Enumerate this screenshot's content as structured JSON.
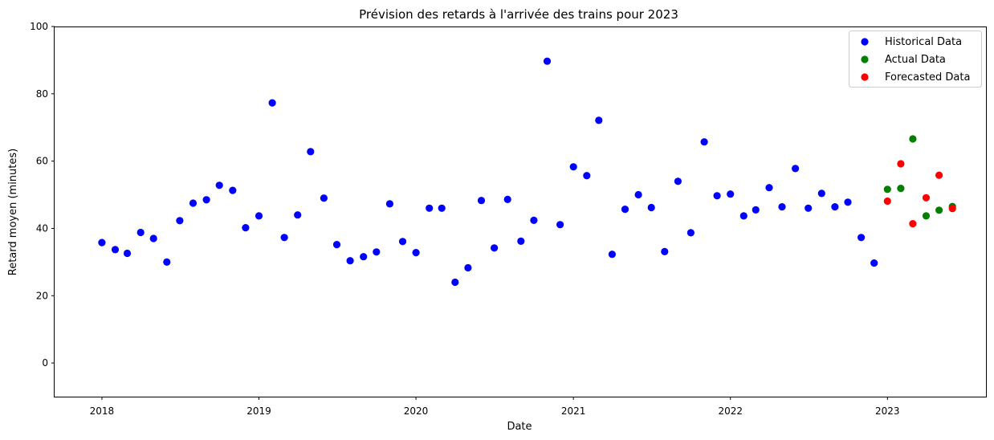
{
  "chart_data": {
    "type": "scatter",
    "title": "Prévision des retards à l'arrivée des trains pour 2023",
    "xlabel": "Date",
    "ylabel": "Retard moyen (minutes)",
    "xlim": [
      "2017-09-13",
      "2023-08-18"
    ],
    "ylim": [
      -10,
      100
    ],
    "x_ticks": [
      {
        "date": "2018-01-01",
        "label": "2018"
      },
      {
        "date": "2019-01-01",
        "label": "2019"
      },
      {
        "date": "2020-01-01",
        "label": "2020"
      },
      {
        "date": "2021-01-01",
        "label": "2021"
      },
      {
        "date": "2022-01-01",
        "label": "2022"
      },
      {
        "date": "2023-01-01",
        "label": "2023"
      }
    ],
    "y_ticks": [
      0,
      20,
      40,
      60,
      80,
      100
    ],
    "grid": false,
    "legend_position": "top-right",
    "series": [
      {
        "name": "Historical Data",
        "color": "#0000ff",
        "points": [
          [
            "2018-01-01",
            35.8
          ],
          [
            "2018-02-01",
            33.7
          ],
          [
            "2018-03-01",
            32.6
          ],
          [
            "2018-04-01",
            38.8
          ],
          [
            "2018-05-01",
            37.0
          ],
          [
            "2018-06-01",
            30.0
          ],
          [
            "2018-07-01",
            42.3
          ],
          [
            "2018-08-01",
            47.5
          ],
          [
            "2018-09-01",
            48.5
          ],
          [
            "2018-10-01",
            52.8
          ],
          [
            "2018-11-01",
            51.3
          ],
          [
            "2018-12-01",
            40.2
          ],
          [
            "2019-01-01",
            43.7
          ],
          [
            "2019-02-01",
            77.3
          ],
          [
            "2019-03-01",
            37.3
          ],
          [
            "2019-04-01",
            44.0
          ],
          [
            "2019-05-01",
            62.8
          ],
          [
            "2019-06-01",
            49.0
          ],
          [
            "2019-07-01",
            35.2
          ],
          [
            "2019-08-01",
            30.4
          ],
          [
            "2019-09-01",
            31.6
          ],
          [
            "2019-10-01",
            33.0
          ],
          [
            "2019-11-01",
            47.3
          ],
          [
            "2019-12-01",
            36.1
          ],
          [
            "2020-01-01",
            32.8
          ],
          [
            "2020-02-01",
            46.0
          ],
          [
            "2020-03-01",
            46.0
          ],
          [
            "2020-04-01",
            24.0
          ],
          [
            "2020-05-01",
            28.3
          ],
          [
            "2020-06-01",
            48.3
          ],
          [
            "2020-07-01",
            34.2
          ],
          [
            "2020-08-01",
            48.6
          ],
          [
            "2020-09-01",
            36.2
          ],
          [
            "2020-10-01",
            42.4
          ],
          [
            "2020-11-01",
            89.7
          ],
          [
            "2020-12-01",
            41.1
          ],
          [
            "2021-01-01",
            58.3
          ],
          [
            "2021-02-01",
            55.7
          ],
          [
            "2021-03-01",
            72.1
          ],
          [
            "2021-04-01",
            32.3
          ],
          [
            "2021-05-01",
            45.7
          ],
          [
            "2021-06-01",
            50.0
          ],
          [
            "2021-07-01",
            46.2
          ],
          [
            "2021-08-01",
            33.1
          ],
          [
            "2021-09-01",
            54.0
          ],
          [
            "2021-10-01",
            38.7
          ],
          [
            "2021-11-01",
            65.7
          ],
          [
            "2021-12-01",
            49.7
          ],
          [
            "2022-01-01",
            50.2
          ],
          [
            "2022-02-01",
            43.7
          ],
          [
            "2022-03-01",
            45.5
          ],
          [
            "2022-04-01",
            52.1
          ],
          [
            "2022-05-01",
            46.4
          ],
          [
            "2022-06-01",
            57.8
          ],
          [
            "2022-07-01",
            46.0
          ],
          [
            "2022-08-01",
            50.4
          ],
          [
            "2022-09-01",
            46.4
          ],
          [
            "2022-10-01",
            47.8
          ],
          [
            "2022-11-01",
            37.3
          ],
          [
            "2022-12-01",
            29.7
          ]
        ]
      },
      {
        "name": "Actual Data",
        "color": "#008000",
        "points": [
          [
            "2023-01-01",
            51.6
          ],
          [
            "2023-02-01",
            51.9
          ],
          [
            "2023-03-01",
            66.6
          ],
          [
            "2023-04-01",
            43.7
          ],
          [
            "2023-05-01",
            45.4
          ],
          [
            "2023-06-01",
            46.5
          ]
        ]
      },
      {
        "name": "Forecasted Data",
        "color": "#ff0000",
        "points": [
          [
            "2023-01-01",
            48.1
          ],
          [
            "2023-02-01",
            59.2
          ],
          [
            "2023-03-01",
            41.4
          ],
          [
            "2023-04-01",
            49.1
          ],
          [
            "2023-05-01",
            55.8
          ],
          [
            "2023-06-01",
            45.9
          ]
        ]
      }
    ]
  }
}
